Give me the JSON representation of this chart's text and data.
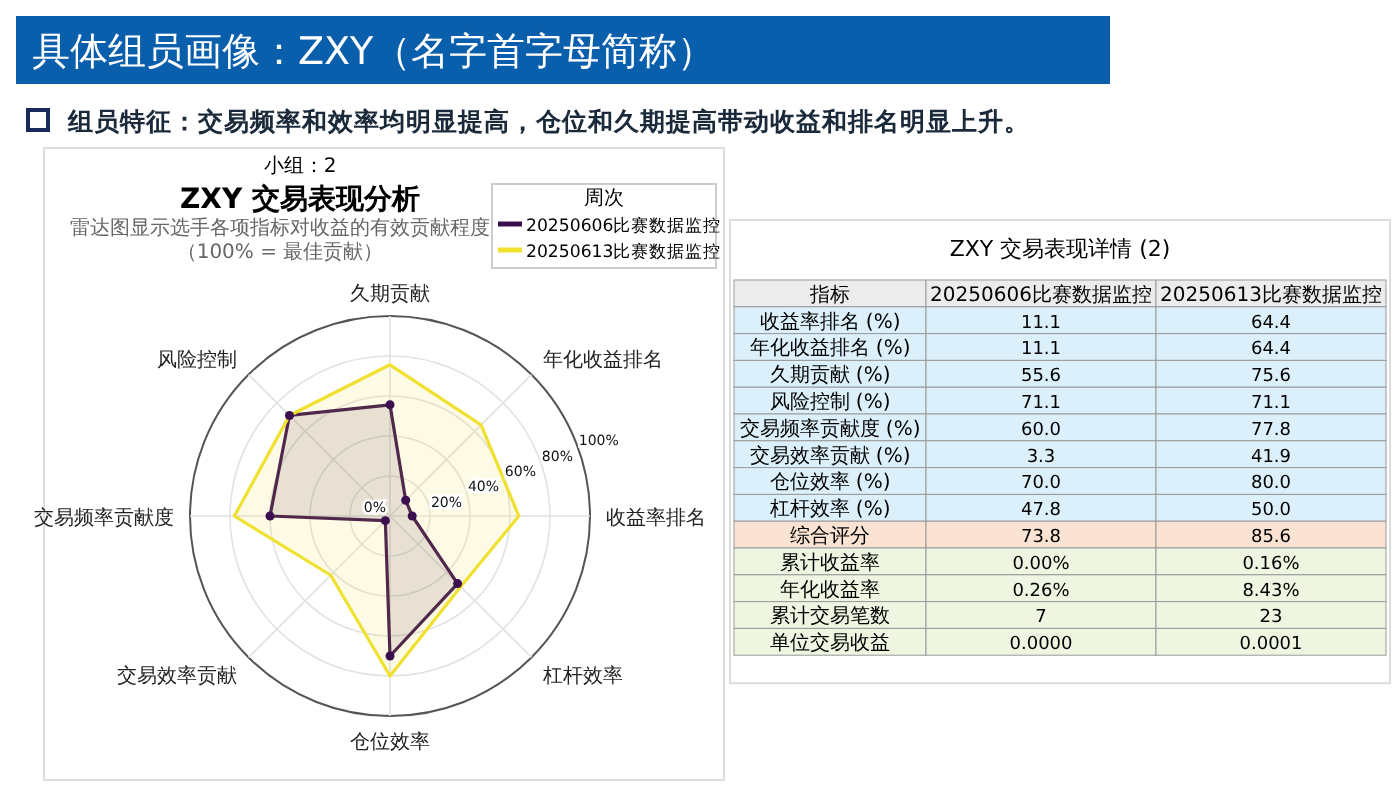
{
  "chart_data": [
    {
      "type": "radar",
      "title": "ZXY 交易表现分析",
      "subtitle": "雷达图显示选手各项指标对收益的有效贡献程度（100% = 最佳贡献）",
      "annotations": [
        "具体组员画像：ZXY（名字首字母简称）",
        "组员特征：交易频率和效率均明显提高，仓位和久期提高带动收益和排名明显上升。",
        "小组：2"
      ],
      "categories": [
        "久期贡献",
        "年化收益排名",
        "收益率排名",
        "杠杆效率",
        "仓位效率",
        "交易效率贡献",
        "交易频率贡献度",
        "风险控制"
      ],
      "series": [
        {
          "name": "20250606比赛数据监控",
          "color": "#3b0f4f",
          "marker": "circle",
          "values": [
            55.6,
            11.1,
            11.1,
            47.8,
            70.0,
            3.3,
            60.0,
            71.1
          ]
        },
        {
          "name": "20250613比赛数据监控",
          "color": "#f0e130",
          "marker": "none",
          "values": [
            75.6,
            64.4,
            64.4,
            50.0,
            80.0,
            41.9,
            77.8,
            71.1
          ]
        }
      ],
      "ylim": [
        0,
        100
      ],
      "yticks": [
        {
          "value": 0,
          "label": "0%"
        },
        {
          "value": 20,
          "label": "20%"
        },
        {
          "value": 40,
          "label": "40%"
        },
        {
          "value": 60,
          "label": "60%"
        },
        {
          "value": 80,
          "label": "80%"
        },
        {
          "value": 100,
          "label": "100%"
        }
      ],
      "grid": true,
      "legend": "top right",
      "legend_title": "周次"
    },
    {
      "type": "other",
      "title": "ZXY 交易表现详情 (2)",
      "categories": [
        "指标",
        "20250606比赛数据监控",
        "20250613比赛数据监控"
      ],
      "y_categories": [
        "收益率排名 (%)",
        "年化收益排名 (%)",
        "久期贡献 (%)",
        "风险控制 (%)",
        "交易频率贡献度 (%)",
        "交易效率贡献 (%)",
        "仓位效率 (%)",
        "杠杆效率 (%)",
        "综合评分",
        "累计收益率",
        "年化收益率",
        "累计交易笔数",
        "单位交易收益"
      ],
      "cell_labels": [
        [
          "11.1",
          "64.4"
        ],
        [
          "11.1",
          "64.4"
        ],
        [
          "55.6",
          "75.6"
        ],
        [
          "71.1",
          "71.1"
        ],
        [
          "60.0",
          "77.8"
        ],
        [
          "3.3",
          "41.9"
        ],
        [
          "70.0",
          "80.0"
        ],
        [
          "47.8",
          "50.0"
        ],
        [
          "73.8",
          "85.6"
        ],
        [
          "0.00%",
          "0.16%"
        ],
        [
          "0.26%",
          "8.43%"
        ],
        [
          "7",
          "23"
        ],
        [
          "0.0000",
          "0.0001"
        ]
      ]
    }
  ]
}
